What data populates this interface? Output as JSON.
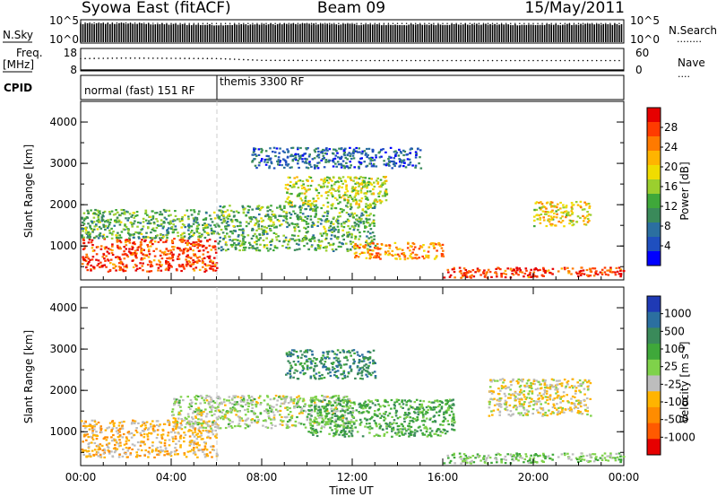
{
  "header": {
    "station": "Syowa East (fitACF)",
    "beam": "Beam 09",
    "date": "15/May/2011"
  },
  "panels": {
    "nsky": {
      "left_label": "N.Sky",
      "left_ticks": [
        "10^5",
        "10^0"
      ],
      "right_ticks": [
        "10^5",
        "10^0"
      ],
      "right_label": "N.Search",
      "right_legend_dots": "........"
    },
    "freq": {
      "left_label_line1": "Freq.",
      "left_label_line2": "[MHz]",
      "left_ticks": [
        "18",
        "8"
      ],
      "right_ticks": [
        "60",
        "0"
      ],
      "right_label": "Nave",
      "right_legend_dots": "...."
    },
    "cpid": {
      "label": "CPID",
      "modes": [
        "normal (fast) 151 RF",
        "themis 3300 RF"
      ]
    }
  },
  "axes": {
    "ylabel": "Slant Range [km]",
    "xlabel": "Time UT",
    "xticks": [
      "00:00",
      "04:00",
      "08:00",
      "12:00",
      "16:00",
      "20:00",
      "00:00"
    ],
    "yticks": [
      "1000",
      "2000",
      "3000",
      "4000"
    ]
  },
  "colorbars": {
    "power": {
      "label": "Power [dB]",
      "ticks": [
        "28",
        "24",
        "20",
        "16",
        "12",
        "8",
        "4"
      ],
      "colors": [
        "#e60000",
        "#ff3b00",
        "#ff7a00",
        "#ffb400",
        "#f0dc00",
        "#9bcf2e",
        "#3fa83a",
        "#3a8a5a",
        "#2b6fa0",
        "#1f4fbf",
        "#0000ff"
      ]
    },
    "velocity": {
      "label": "Velocity [m s",
      "label_sup": "-1",
      "label_end": "]",
      "ticks": [
        "1000",
        "500",
        "100",
        "25",
        "-25",
        "-100",
        "-500",
        "-1000"
      ],
      "colors": [
        "#1f3ab5",
        "#2b6fa0",
        "#3a8a5a",
        "#3fa83a",
        "#7fd24a",
        "#bdbdbd",
        "#ffb400",
        "#ff8c00",
        "#ff5a00",
        "#e60000"
      ]
    }
  },
  "chart_data": [
    {
      "type": "line",
      "title": "N.Sky / N.Search",
      "x_units": "hours UT",
      "ylim_log10": [
        0,
        5
      ],
      "series": [
        {
          "name": "N.Sky",
          "x": [
            0,
            2,
            4,
            6,
            8,
            10,
            12,
            14,
            16,
            18,
            20,
            22,
            24
          ],
          "y_log10": [
            4.1,
            4.2,
            4.0,
            3.9,
            4.0,
            4.1,
            4.0,
            3.9,
            4.0,
            4.0,
            3.9,
            4.0,
            4.0
          ]
        },
        {
          "name": "N.Search",
          "x": [
            0,
            2,
            4,
            6,
            8,
            10,
            12,
            14,
            16,
            18,
            20,
            22,
            24
          ],
          "y_log10": [
            3.9,
            3.9,
            3.8,
            3.8,
            3.8,
            3.8,
            3.8,
            3.8,
            3.8,
            3.8,
            3.8,
            3.8,
            3.8
          ]
        }
      ]
    },
    {
      "type": "line",
      "title": "Freq. [MHz] / Nave",
      "x_units": "hours UT",
      "series": [
        {
          "name": "Freq.",
          "ylim": [
            8,
            18
          ],
          "x": [
            0,
            2,
            4,
            6,
            8,
            12,
            16,
            20,
            24
          ],
          "y": [
            13.5,
            13.7,
            13.6,
            13.5,
            12.7,
            12.6,
            12.6,
            12.6,
            12.6
          ]
        },
        {
          "name": "Nave",
          "ylim": [
            0,
            60
          ],
          "x": [
            0,
            6,
            12,
            18,
            24
          ],
          "y": [
            2,
            2,
            2,
            2,
            2
          ]
        }
      ]
    },
    {
      "type": "heatmap",
      "title": "Power [dB]",
      "x_units": "hours UT",
      "xlim": [
        0,
        24
      ],
      "y_units": "km",
      "ylim": [
        180,
        4500
      ],
      "clim": [
        0,
        30
      ],
      "regions": [
        {
          "x": [
            0.0,
            6.0
          ],
          "y": [
            400,
            1200
          ],
          "value": 26
        },
        {
          "x": [
            0.0,
            6.0
          ],
          "y": [
            1200,
            1900
          ],
          "value": 12
        },
        {
          "x": [
            6.0,
            13.0
          ],
          "y": [
            900,
            2000
          ],
          "value": 12
        },
        {
          "x": [
            9.0,
            13.5
          ],
          "y": [
            2000,
            2700
          ],
          "value": 16
        },
        {
          "x": [
            12.0,
            16.0
          ],
          "y": [
            700,
            1100
          ],
          "value": 22
        },
        {
          "x": [
            16.0,
            24.0
          ],
          "y": [
            250,
            500
          ],
          "value": 26
        },
        {
          "x": [
            20.0,
            22.5
          ],
          "y": [
            1500,
            2100
          ],
          "value": 18
        },
        {
          "x": [
            7.5,
            15.0
          ],
          "y": [
            2900,
            3400
          ],
          "value": 6
        }
      ]
    },
    {
      "type": "heatmap",
      "title": "Velocity [m s-1]",
      "x_units": "hours UT",
      "xlim": [
        0,
        24
      ],
      "y_units": "km",
      "ylim": [
        180,
        4500
      ],
      "clim": [
        -1000,
        1000
      ],
      "regions": [
        {
          "x": [
            0.0,
            6.0
          ],
          "y": [
            400,
            1300
          ],
          "value": -300
        },
        {
          "x": [
            4.0,
            12.0
          ],
          "y": [
            1100,
            1900
          ],
          "value": 0
        },
        {
          "x": [
            10.0,
            16.5
          ],
          "y": [
            900,
            1800
          ],
          "value": 300
        },
        {
          "x": [
            16.0,
            24.0
          ],
          "y": [
            250,
            500
          ],
          "value": 100
        },
        {
          "x": [
            18.0,
            22.5
          ],
          "y": [
            1400,
            2300
          ],
          "value": -150
        },
        {
          "x": [
            9.0,
            13.0
          ],
          "y": [
            2300,
            3000
          ],
          "value": 500
        }
      ]
    }
  ]
}
